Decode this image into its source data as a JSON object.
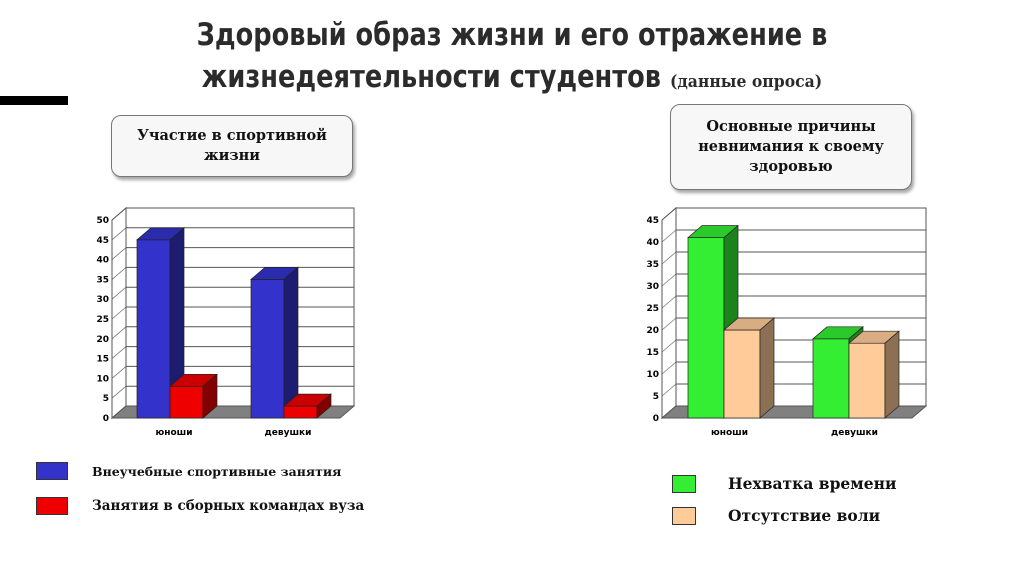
{
  "title": {
    "line1": "Здоровый образ жизни и его отражение в",
    "line2": "жизнедеятельности студентов",
    "note": "(данные опроса)"
  },
  "callouts": {
    "left": "Участие в спортивной жизни",
    "right": "Основные причины невнимания к своему здоровью"
  },
  "chart_data": [
    {
      "type": "bar",
      "categories": [
        "юноши",
        "девушки"
      ],
      "series": [
        {
          "name": "Внеучебные спортивные занятия",
          "values": [
            45,
            35
          ],
          "color": "#3333cc"
        },
        {
          "name": "Занятия в сборных командах вуза",
          "values": [
            8,
            3
          ],
          "color": "#ee0000"
        }
      ],
      "ylim": [
        0,
        50
      ],
      "yticks": [
        0,
        5,
        10,
        15,
        20,
        25,
        30,
        35,
        40,
        45,
        50
      ],
      "grid": true,
      "legend_position": "bottom-left",
      "style": "3d"
    },
    {
      "type": "bar",
      "categories": [
        "юноши",
        "девушки"
      ],
      "series": [
        {
          "name": "Нехватка времени",
          "values": [
            41,
            18
          ],
          "color": "#33ee33"
        },
        {
          "name": "Отсутствие воли",
          "values": [
            20,
            17
          ],
          "color": "#ffcc99"
        }
      ],
      "ylim": [
        0,
        45
      ],
      "yticks": [
        0,
        5,
        10,
        15,
        20,
        25,
        30,
        35,
        40,
        45
      ],
      "grid": true,
      "legend_position": "bottom-right",
      "style": "3d"
    }
  ]
}
